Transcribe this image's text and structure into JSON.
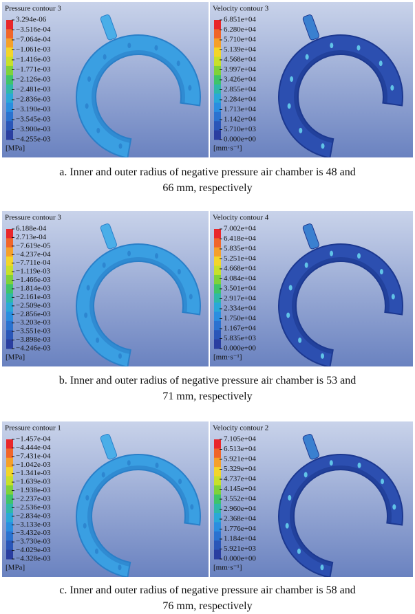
{
  "figures": [
    {
      "caption": [
        "a. Inner and outer radius of negative pressure air chamber is 48 and",
        "66 mm, respectively"
      ],
      "left": {
        "title": "Pressure contour 3",
        "unit": "[MPa]",
        "labels": [
          "3.294e-06",
          "−3.516e-04",
          "−7.064e-04",
          "−1.061e-03",
          "−1.416e-03",
          "−1.771e-03",
          "−2.126e-03",
          "−2.481e-03",
          "−2.836e-03",
          "−3.190e-03",
          "−3.545e-03",
          "−3.900e-03",
          "−4.255e-03"
        ]
      },
      "right": {
        "title": "Velocity contour 3",
        "unit": "[mm·s⁻¹]",
        "labels": [
          "6.851e+04",
          "6.280e+04",
          "5.710e+04",
          "5.139e+04",
          "4.568e+04",
          "3.997e+04",
          "3.426e+04",
          "2.855e+04",
          "2.284e+04",
          "1.713e+04",
          "1.142e+04",
          "5.710e+03",
          "0.000e+00"
        ]
      }
    },
    {
      "caption": [
        "b. Inner and outer radius of negative pressure air chamber is 53 and",
        "71 mm, respectively"
      ],
      "left": {
        "title": "Pressure contour 3",
        "unit": "[MPa]",
        "labels": [
          "6.188e-04",
          "2.713e-04",
          "−7.619e-05",
          "−4.237e-04",
          "−7.711e-04",
          "−1.119e-03",
          "−1.466e-03",
          "−1.814e-03",
          "−2.161e-03",
          "−2.509e-03",
          "−2.856e-03",
          "−3.203e-03",
          "−3.551e-03",
          "−3.898e-03",
          "−4.246e-03"
        ]
      },
      "right": {
        "title": "Velocity contour 4",
        "unit": "[mm·s⁻¹]",
        "labels": [
          "7.002e+04",
          "6.418e+04",
          "5.835e+04",
          "5.251e+04",
          "4.668e+04",
          "4.084e+04",
          "3.501e+04",
          "2.917e+04",
          "2.334e+04",
          "1.750e+04",
          "1.167e+04",
          "5.835e+03",
          "0.000e+00"
        ]
      }
    },
    {
      "caption": [
        "c. Inner and outer radius of negative pressure air chamber is 58 and",
        "76 mm, respectively"
      ],
      "left": {
        "title": "Pressure contour 1",
        "unit": "[MPa]",
        "labels": [
          "−1.457e-04",
          "−4.444e-04",
          "−7.431e-04",
          "−1.042e-03",
          "−1.341e-03",
          "−1.639e-03",
          "−1.938e-03",
          "−2.237e-03",
          "−2.536e-03",
          "−2.834e-03",
          "−3.133e-03",
          "−3.432e-03",
          "−3.730e-03",
          "−4.029e-03",
          "−4.328e-03"
        ]
      },
      "right": {
        "title": "Velocity contour 2",
        "unit": "[mm·s⁻¹]",
        "labels": [
          "7.105e+04",
          "6.513e+04",
          "5.921e+04",
          "5.329e+04",
          "4.737e+04",
          "4.145e+04",
          "3.552e+04",
          "2.960e+04",
          "2.368e+04",
          "1.776e+04",
          "1.184e+04",
          "5.921e+03",
          "0.000e+00"
        ]
      }
    }
  ]
}
